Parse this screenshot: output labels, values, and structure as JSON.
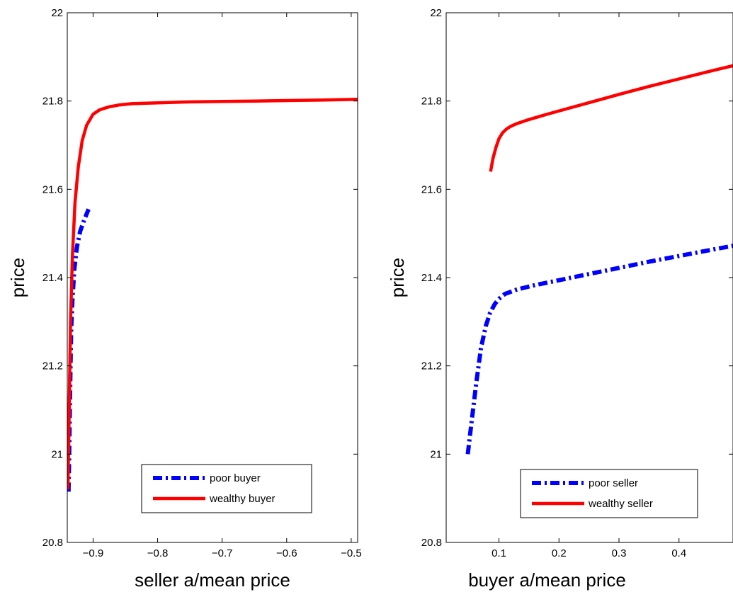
{
  "chart_data": [
    {
      "type": "line",
      "title": "",
      "xlabel": "seller a/mean price",
      "ylabel": "price",
      "xlim": [
        -0.94,
        -0.49
      ],
      "ylim": [
        20.8,
        22.0
      ],
      "xticks": [
        -0.9,
        -0.8,
        -0.7,
        -0.6,
        -0.5
      ],
      "xtick_labels": [
        "−0.9",
        "−0.8",
        "−0.7",
        "−0.6",
        "−0.5"
      ],
      "yticks": [
        20.8,
        21.0,
        21.2,
        21.4,
        21.6,
        21.8,
        22.0
      ],
      "ytick_labels": [
        "20.8",
        "21",
        "21.2",
        "21.4",
        "21.6",
        "21.8",
        "22"
      ],
      "grid": false,
      "legend_position": "bottom-right",
      "series": [
        {
          "name": "poor buyer",
          "color": "#0000ff",
          "style": "dashdot",
          "x": [
            -0.938,
            -0.937,
            -0.936,
            -0.935,
            -0.934,
            -0.932,
            -0.929,
            -0.925,
            -0.92,
            -0.914,
            -0.907
          ],
          "y": [
            20.915,
            21.0,
            21.1,
            21.2,
            21.28,
            21.35,
            21.42,
            21.47,
            21.505,
            21.53,
            21.555
          ]
        },
        {
          "name": "wealthy buyer",
          "color": "#ff0000",
          "style": "solid",
          "x": [
            -0.939,
            -0.937,
            -0.935,
            -0.932,
            -0.928,
            -0.923,
            -0.917,
            -0.91,
            -0.9,
            -0.89,
            -0.875,
            -0.86,
            -0.84,
            -0.8,
            -0.75,
            -0.7,
            -0.65,
            -0.6,
            -0.55,
            -0.49
          ],
          "y": [
            20.92,
            21.1,
            21.3,
            21.45,
            21.57,
            21.65,
            21.71,
            21.745,
            21.77,
            21.78,
            21.787,
            21.791,
            21.794,
            21.796,
            21.798,
            21.799,
            21.8,
            21.801,
            21.802,
            21.804
          ]
        }
      ]
    },
    {
      "type": "line",
      "title": "",
      "xlabel": "buyer a/mean price",
      "ylabel": "price",
      "xlim": [
        0.012,
        0.49
      ],
      "ylim": [
        20.8,
        22.0
      ],
      "xticks": [
        0.1,
        0.2,
        0.3,
        0.4
      ],
      "xtick_labels": [
        "0.1",
        "0.2",
        "0.3",
        "0.4"
      ],
      "yticks": [
        20.8,
        21.0,
        21.2,
        21.4,
        21.6,
        21.8,
        22.0
      ],
      "ytick_labels": [
        "20.8",
        "21",
        "21.2",
        "21.4",
        "21.6",
        "21.8",
        "22"
      ],
      "grid": false,
      "legend_position": "bottom-right",
      "series": [
        {
          "name": "poor seller",
          "color": "#0000ff",
          "style": "dashdot",
          "x": [
            0.048,
            0.055,
            0.062,
            0.07,
            0.078,
            0.085,
            0.093,
            0.1,
            0.11,
            0.13,
            0.16,
            0.2,
            0.25,
            0.3,
            0.35,
            0.4,
            0.45,
            0.49
          ],
          "y": [
            21.0,
            21.08,
            21.16,
            21.24,
            21.29,
            21.32,
            21.34,
            21.352,
            21.363,
            21.373,
            21.383,
            21.394,
            21.408,
            21.422,
            21.436,
            21.449,
            21.462,
            21.472
          ]
        },
        {
          "name": "wealthy seller",
          "color": "#ff0000",
          "style": "solid",
          "x": [
            0.086,
            0.09,
            0.095,
            0.1,
            0.106,
            0.113,
            0.12,
            0.13,
            0.15,
            0.18,
            0.22,
            0.26,
            0.3,
            0.35,
            0.4,
            0.45,
            0.49
          ],
          "y": [
            21.64,
            21.67,
            21.695,
            21.715,
            21.728,
            21.737,
            21.743,
            21.749,
            21.758,
            21.77,
            21.785,
            21.8,
            21.815,
            21.833,
            21.85,
            21.867,
            21.88
          ]
        }
      ]
    }
  ]
}
